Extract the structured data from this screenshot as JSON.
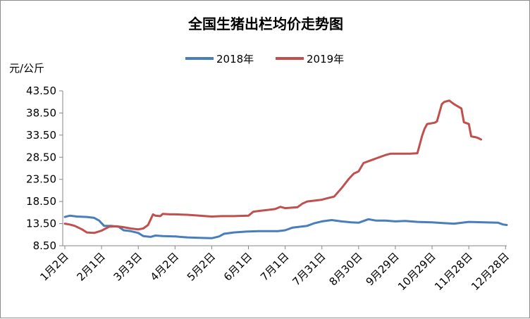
{
  "chart_data": {
    "type": "line",
    "title": "全国生猪出栏均价走势图",
    "unit_label": "元/公斤",
    "ylim": [
      8.5,
      43.5
    ],
    "ytick_labels": [
      "43.50",
      "38.50",
      "33.50",
      "28.50",
      "23.50",
      "18.50",
      "13.50",
      "8.50"
    ],
    "ytick_values": [
      43.5,
      38.5,
      33.5,
      28.5,
      23.5,
      18.5,
      13.5,
      8.5
    ],
    "xtick_labels": [
      "1月2日",
      "2月1日",
      "3月3日",
      "4月2日",
      "5月2日",
      "6月1日",
      "7月1日",
      "7月31日",
      "8月30日",
      "9月29日",
      "10月29日",
      "11月28日",
      "12月28日"
    ],
    "xtick_day_of_year": [
      2,
      32,
      62,
      92,
      122,
      152,
      182,
      212,
      242,
      272,
      302,
      332,
      362
    ],
    "x_unit": "day of year",
    "grid": false,
    "legend_position": "top",
    "series": [
      {
        "name": "2018年",
        "color": "#4a7ebb",
        "points": [
          [
            2,
            15.0
          ],
          [
            6,
            15.3
          ],
          [
            12,
            15.1
          ],
          [
            20,
            15.0
          ],
          [
            26,
            14.8
          ],
          [
            30,
            14.2
          ],
          [
            34,
            13.0
          ],
          [
            40,
            13.0
          ],
          [
            46,
            12.8
          ],
          [
            50,
            12.0
          ],
          [
            56,
            11.8
          ],
          [
            62,
            11.4
          ],
          [
            66,
            10.7
          ],
          [
            72,
            10.5
          ],
          [
            76,
            10.8
          ],
          [
            82,
            10.7
          ],
          [
            92,
            10.6
          ],
          [
            102,
            10.4
          ],
          [
            112,
            10.3
          ],
          [
            122,
            10.2
          ],
          [
            128,
            10.6
          ],
          [
            132,
            11.2
          ],
          [
            140,
            11.5
          ],
          [
            150,
            11.7
          ],
          [
            160,
            11.8
          ],
          [
            170,
            11.8
          ],
          [
            176,
            11.8
          ],
          [
            182,
            12.0
          ],
          [
            188,
            12.6
          ],
          [
            194,
            12.8
          ],
          [
            200,
            13.0
          ],
          [
            206,
            13.6
          ],
          [
            212,
            14.0
          ],
          [
            220,
            14.3
          ],
          [
            228,
            14.0
          ],
          [
            236,
            13.8
          ],
          [
            242,
            13.7
          ],
          [
            250,
            14.5
          ],
          [
            256,
            14.2
          ],
          [
            264,
            14.2
          ],
          [
            272,
            14.0
          ],
          [
            280,
            14.1
          ],
          [
            290,
            13.9
          ],
          [
            302,
            13.8
          ],
          [
            312,
            13.6
          ],
          [
            320,
            13.5
          ],
          [
            332,
            13.9
          ],
          [
            345,
            13.8
          ],
          [
            356,
            13.7
          ],
          [
            360,
            13.3
          ],
          [
            363,
            13.2
          ]
        ]
      },
      {
        "name": "2019年",
        "color": "#c0504d",
        "points": [
          [
            2,
            13.5
          ],
          [
            6,
            13.3
          ],
          [
            10,
            13.0
          ],
          [
            16,
            12.2
          ],
          [
            20,
            11.5
          ],
          [
            26,
            11.4
          ],
          [
            32,
            11.9
          ],
          [
            38,
            12.8
          ],
          [
            44,
            12.9
          ],
          [
            50,
            12.7
          ],
          [
            56,
            12.4
          ],
          [
            62,
            12.2
          ],
          [
            66,
            12.4
          ],
          [
            70,
            13.2
          ],
          [
            74,
            15.6
          ],
          [
            76,
            15.3
          ],
          [
            80,
            15.2
          ],
          [
            82,
            15.7
          ],
          [
            88,
            15.6
          ],
          [
            92,
            15.6
          ],
          [
            102,
            15.5
          ],
          [
            112,
            15.3
          ],
          [
            122,
            15.1
          ],
          [
            130,
            15.2
          ],
          [
            140,
            15.2
          ],
          [
            152,
            15.3
          ],
          [
            156,
            16.2
          ],
          [
            162,
            16.4
          ],
          [
            168,
            16.6
          ],
          [
            174,
            16.8
          ],
          [
            178,
            17.3
          ],
          [
            182,
            17.0
          ],
          [
            192,
            17.2
          ],
          [
            196,
            18.0
          ],
          [
            200,
            18.5
          ],
          [
            206,
            18.7
          ],
          [
            212,
            18.9
          ],
          [
            216,
            19.2
          ],
          [
            222,
            19.6
          ],
          [
            228,
            21.5
          ],
          [
            234,
            23.6
          ],
          [
            238,
            24.8
          ],
          [
            242,
            25.3
          ],
          [
            246,
            27.2
          ],
          [
            252,
            27.8
          ],
          [
            258,
            28.4
          ],
          [
            264,
            29.0
          ],
          [
            268,
            29.3
          ],
          [
            272,
            29.3
          ],
          [
            278,
            29.3
          ],
          [
            284,
            29.3
          ],
          [
            290,
            29.4
          ],
          [
            294,
            33.5
          ],
          [
            296,
            35.0
          ],
          [
            298,
            36.0
          ],
          [
            304,
            36.3
          ],
          [
            306,
            36.6
          ],
          [
            310,
            40.5
          ],
          [
            312,
            41.0
          ],
          [
            316,
            41.3
          ],
          [
            320,
            40.5
          ],
          [
            326,
            39.5
          ],
          [
            328,
            36.4
          ],
          [
            332,
            36.0
          ],
          [
            334,
            33.2
          ],
          [
            338,
            33.0
          ],
          [
            340,
            32.8
          ],
          [
            342,
            32.5
          ]
        ]
      }
    ]
  }
}
